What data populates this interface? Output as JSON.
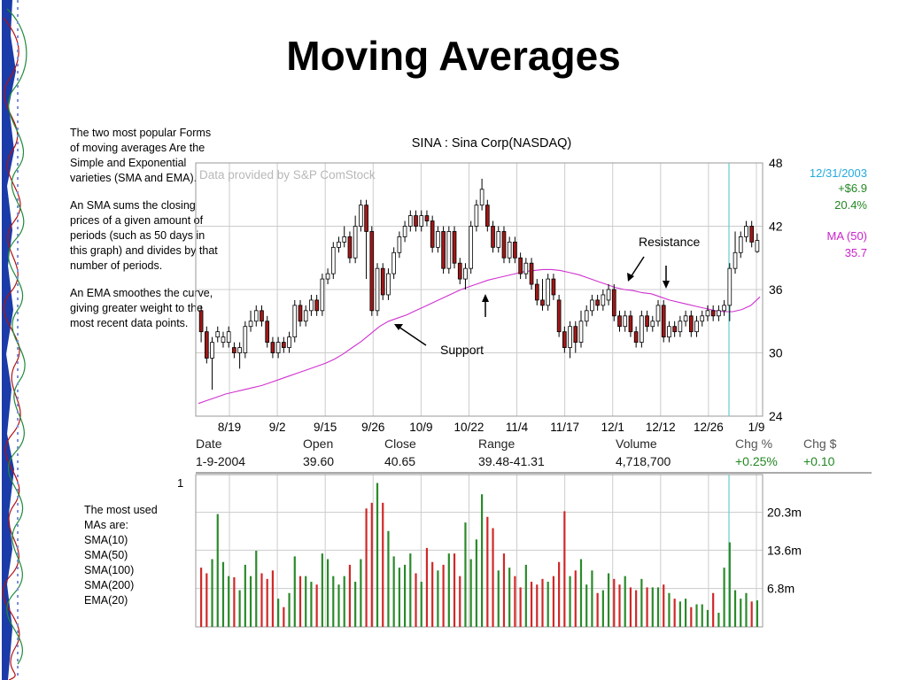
{
  "slide": {
    "title": "Moving Averages"
  },
  "notes": {
    "paragraphs": [
      "The two most popular Forms of moving averages Are the Simple and Exponential varieties (SMA and EMA).",
      "An SMA sums the closing prices of a given amount of periods (such as 50 days in this graph) and divides by that number of periods.",
      "An EMA smoothes the curve, giving greater weight to the most recent data points."
    ],
    "used_title": "The most used MAs are:",
    "used_items": [
      "SMA(10)",
      "SMA(50)",
      "SMA(100)",
      "SMA(200)",
      "EMA(20)"
    ]
  },
  "chart_data": {
    "type": "candlestick",
    "title": "SINA : Sina Corp(NASDAQ)",
    "watermark": "Data provided by S&P ComStock",
    "x_tick_labels": [
      "8/19",
      "9/2",
      "9/15",
      "9/26",
      "10/9",
      "10/22",
      "11/4",
      "11/17",
      "12/1",
      "12/12",
      "12/26",
      "1/9"
    ],
    "y_tick_labels": [
      "48",
      "42",
      "36",
      "30",
      "24"
    ],
    "ylim": [
      24,
      48
    ],
    "annotations": {
      "support": "Support",
      "resistance": "Resistance"
    },
    "last_date_info": {
      "date": "12/31/2003",
      "change_dollar": "+$6.9",
      "change_pct": "20.4%"
    },
    "ma_info": {
      "label": "MA (50)",
      "value": "35.7"
    },
    "info_row": {
      "headers": [
        "Date",
        "Open",
        "Close",
        "Range",
        "Volume",
        "Chg %",
        "Chg $"
      ],
      "values": [
        "1-9-2004",
        "39.60",
        "40.65",
        "39.48-41.31",
        "4,718,700",
        "+0.25%",
        "+0.10"
      ]
    },
    "volume_panel_label": "1",
    "volume_tick_labels": [
      "20.3m",
      "13.6m",
      "6.8m"
    ],
    "volume_max_m": 27,
    "ma50": [
      25.2,
      25.5,
      25.8,
      26.1,
      26.3,
      26.5,
      26.7,
      26.9,
      27.2,
      27.5,
      27.8,
      28.1,
      28.4,
      28.7,
      29.0,
      29.4,
      29.9,
      30.5,
      31.1,
      31.8,
      32.5,
      33.0,
      33.3,
      33.6,
      34.0,
      34.4,
      34.8,
      35.2,
      35.6,
      36.0,
      36.3,
      36.6,
      36.9,
      37.1,
      37.3,
      37.5,
      37.7,
      37.8,
      37.9,
      37.9,
      37.8,
      37.6,
      37.4,
      37.1,
      36.8,
      36.5,
      36.2,
      36.0,
      35.9,
      35.7,
      35.6,
      35.3,
      35.0,
      34.8,
      34.6,
      34.4,
      34.2,
      34.0,
      33.9,
      33.9,
      34.1,
      34.5,
      35.3
    ],
    "candles": [
      {
        "o": 34.0,
        "c": 32.0,
        "h": 34.5,
        "l": 31.0,
        "v": 10.5
      },
      {
        "o": 32.0,
        "c": 29.5,
        "h": 32.5,
        "l": 29.0,
        "v": 9.5
      },
      {
        "o": 29.5,
        "c": 31.0,
        "h": 31.5,
        "l": 26.5,
        "v": 12.0
      },
      {
        "o": 31.5,
        "c": 32.0,
        "h": 32.5,
        "l": 31.0,
        "v": 20.0
      },
      {
        "o": 31.0,
        "c": 31.5,
        "h": 32.0,
        "l": 30.5,
        "v": 11.5
      },
      {
        "o": 31.0,
        "c": 32.0,
        "h": 32.5,
        "l": 30.5,
        "v": 9.0
      },
      {
        "o": 30.5,
        "c": 30.0,
        "h": 31.0,
        "l": 29.5,
        "v": 8.8
      },
      {
        "o": 30.0,
        "c": 30.5,
        "h": 31.0,
        "l": 28.5,
        "v": 6.5
      },
      {
        "o": 30.0,
        "c": 32.5,
        "h": 33.0,
        "l": 29.5,
        "v": 11.0
      },
      {
        "o": 32.5,
        "c": 33.0,
        "h": 34.0,
        "l": 32.0,
        "v": 9.0
      },
      {
        "o": 33.0,
        "c": 34.0,
        "h": 34.5,
        "l": 32.5,
        "v": 13.5
      },
      {
        "o": 34.0,
        "c": 33.0,
        "h": 34.5,
        "l": 32.5,
        "v": 9.5
      },
      {
        "o": 33.0,
        "c": 31.0,
        "h": 33.5,
        "l": 30.5,
        "v": 8.5
      },
      {
        "o": 31.0,
        "c": 30.0,
        "h": 31.5,
        "l": 29.5,
        "v": 10.0
      },
      {
        "o": 30.0,
        "c": 31.0,
        "h": 31.5,
        "l": 29.5,
        "v": 5.0
      },
      {
        "o": 31.0,
        "c": 30.5,
        "h": 31.5,
        "l": 30.0,
        "v": 3.5
      },
      {
        "o": 30.5,
        "c": 31.5,
        "h": 32.0,
        "l": 30.0,
        "v": 6.0
      },
      {
        "o": 31.5,
        "c": 34.5,
        "h": 35.0,
        "l": 31.0,
        "v": 12.5
      },
      {
        "o": 34.5,
        "c": 33.0,
        "h": 35.0,
        "l": 32.5,
        "v": 9.0
      },
      {
        "o": 33.0,
        "c": 34.0,
        "h": 34.5,
        "l": 32.5,
        "v": 9.0
      },
      {
        "o": 34.0,
        "c": 35.0,
        "h": 35.5,
        "l": 33.5,
        "v": 8.0
      },
      {
        "o": 35.0,
        "c": 34.0,
        "h": 35.5,
        "l": 33.5,
        "v": 7.5
      },
      {
        "o": 34.0,
        "c": 37.0,
        "h": 37.5,
        "l": 33.5,
        "v": 13.0
      },
      {
        "o": 37.0,
        "c": 37.5,
        "h": 38.0,
        "l": 36.5,
        "v": 12.0
      },
      {
        "o": 37.5,
        "c": 40.0,
        "h": 40.5,
        "l": 37.0,
        "v": 9.0
      },
      {
        "o": 40.0,
        "c": 40.5,
        "h": 41.0,
        "l": 39.5,
        "v": 7.5
      },
      {
        "o": 40.5,
        "c": 41.0,
        "h": 42.0,
        "l": 40.0,
        "v": 9.0
      },
      {
        "o": 41.0,
        "c": 39.0,
        "h": 41.5,
        "l": 38.5,
        "v": 11.0
      },
      {
        "o": 39.0,
        "c": 42.0,
        "h": 43.0,
        "l": 38.5,
        "v": 8.0
      },
      {
        "o": 42.0,
        "c": 44.0,
        "h": 44.5,
        "l": 41.5,
        "v": 12.0
      },
      {
        "o": 44.0,
        "c": 41.5,
        "h": 44.5,
        "l": 37.0,
        "v": 21.0
      },
      {
        "o": 41.5,
        "c": 34.0,
        "h": 42.0,
        "l": 33.5,
        "v": 22.0
      },
      {
        "o": 34.0,
        "c": 38.0,
        "h": 38.5,
        "l": 33.5,
        "v": 25.5
      },
      {
        "o": 38.0,
        "c": 35.5,
        "h": 38.5,
        "l": 35.0,
        "v": 22.0
      },
      {
        "o": 35.5,
        "c": 37.5,
        "h": 38.0,
        "l": 35.0,
        "v": 17.0
      },
      {
        "o": 37.5,
        "c": 39.5,
        "h": 40.0,
        "l": 37.0,
        "v": 12.5
      },
      {
        "o": 39.5,
        "c": 41.0,
        "h": 41.5,
        "l": 39.0,
        "v": 10.5
      },
      {
        "o": 41.0,
        "c": 42.0,
        "h": 42.5,
        "l": 40.5,
        "v": 11.0
      },
      {
        "o": 42.0,
        "c": 43.0,
        "h": 43.5,
        "l": 41.5,
        "v": 13.0
      },
      {
        "o": 43.0,
        "c": 42.0,
        "h": 43.5,
        "l": 41.5,
        "v": 9.5
      },
      {
        "o": 42.0,
        "c": 43.0,
        "h": 43.5,
        "l": 41.5,
        "v": 8.0
      },
      {
        "o": 43.0,
        "c": 42.5,
        "h": 43.5,
        "l": 42.0,
        "v": 14.0
      },
      {
        "o": 42.5,
        "c": 40.0,
        "h": 43.0,
        "l": 39.5,
        "v": 11.5
      },
      {
        "o": 40.0,
        "c": 41.5,
        "h": 42.0,
        "l": 39.5,
        "v": 10.0
      },
      {
        "o": 41.5,
        "c": 38.0,
        "h": 42.0,
        "l": 37.5,
        "v": 11.0
      },
      {
        "o": 38.0,
        "c": 41.5,
        "h": 42.0,
        "l": 37.5,
        "v": 13.0
      },
      {
        "o": 41.5,
        "c": 38.5,
        "h": 42.0,
        "l": 38.0,
        "v": 13.0
      },
      {
        "o": 38.5,
        "c": 37.0,
        "h": 39.0,
        "l": 36.5,
        "v": 9.0
      },
      {
        "o": 37.0,
        "c": 38.0,
        "h": 38.5,
        "l": 36.0,
        "v": 18.5
      },
      {
        "o": 38.0,
        "c": 42.0,
        "h": 42.5,
        "l": 37.5,
        "v": 12.0
      },
      {
        "o": 42.0,
        "c": 44.0,
        "h": 44.5,
        "l": 41.5,
        "v": 15.5
      },
      {
        "o": 44.0,
        "c": 45.5,
        "h": 46.5,
        "l": 43.5,
        "v": 23.5
      },
      {
        "o": 44.0,
        "c": 42.0,
        "h": 44.5,
        "l": 41.5,
        "v": 19.5
      },
      {
        "o": 42.0,
        "c": 40.0,
        "h": 42.5,
        "l": 39.5,
        "v": 17.5
      },
      {
        "o": 40.0,
        "c": 41.5,
        "h": 42.0,
        "l": 39.5,
        "v": 10.0
      },
      {
        "o": 41.5,
        "c": 39.0,
        "h": 42.0,
        "l": 38.5,
        "v": 13.0
      },
      {
        "o": 39.0,
        "c": 40.5,
        "h": 41.0,
        "l": 38.5,
        "v": 10.5
      },
      {
        "o": 40.5,
        "c": 39.0,
        "h": 41.0,
        "l": 38.5,
        "v": 9.0
      },
      {
        "o": 39.0,
        "c": 37.5,
        "h": 39.5,
        "l": 37.0,
        "v": 7.0
      },
      {
        "o": 37.5,
        "c": 38.5,
        "h": 39.0,
        "l": 37.0,
        "v": 11.0
      },
      {
        "o": 38.5,
        "c": 36.5,
        "h": 39.0,
        "l": 36.0,
        "v": 8.0
      },
      {
        "o": 36.5,
        "c": 35.0,
        "h": 37.0,
        "l": 34.5,
        "v": 7.5
      },
      {
        "o": 35.0,
        "c": 34.5,
        "h": 37.0,
        "l": 34.0,
        "v": 8.5
      },
      {
        "o": 34.5,
        "c": 37.0,
        "h": 37.5,
        "l": 34.0,
        "v": 8.0
      },
      {
        "o": 37.0,
        "c": 35.5,
        "h": 37.5,
        "l": 35.0,
        "v": 9.0
      },
      {
        "o": 35.0,
        "c": 32.0,
        "h": 35.5,
        "l": 31.5,
        "v": 11.5
      },
      {
        "o": 32.0,
        "c": 30.5,
        "h": 32.5,
        "l": 30.0,
        "v": 20.5
      },
      {
        "o": 30.5,
        "c": 32.5,
        "h": 33.0,
        "l": 29.5,
        "v": 9.0
      },
      {
        "o": 32.5,
        "c": 31.0,
        "h": 33.0,
        "l": 30.0,
        "v": 10.0
      },
      {
        "o": 31.0,
        "c": 33.0,
        "h": 34.0,
        "l": 30.5,
        "v": 12.0
      },
      {
        "o": 33.0,
        "c": 34.0,
        "h": 34.5,
        "l": 32.5,
        "v": 7.5
      },
      {
        "o": 34.0,
        "c": 35.0,
        "h": 35.5,
        "l": 33.5,
        "v": 10.0
      },
      {
        "o": 35.0,
        "c": 34.5,
        "h": 35.5,
        "l": 34.0,
        "v": 6.0
      },
      {
        "o": 34.5,
        "c": 35.5,
        "h": 36.0,
        "l": 34.0,
        "v": 6.5
      },
      {
        "o": 35.0,
        "c": 36.0,
        "h": 36.5,
        "l": 34.5,
        "v": 9.5
      },
      {
        "o": 36.0,
        "c": 33.5,
        "h": 36.5,
        "l": 33.0,
        "v": 8.5
      },
      {
        "o": 33.5,
        "c": 32.5,
        "h": 34.0,
        "l": 32.0,
        "v": 7.5
      },
      {
        "o": 32.5,
        "c": 33.5,
        "h": 34.0,
        "l": 32.0,
        "v": 9.0
      },
      {
        "o": 33.5,
        "c": 32.0,
        "h": 34.0,
        "l": 31.5,
        "v": 7.0
      },
      {
        "o": 32.0,
        "c": 31.0,
        "h": 32.5,
        "l": 30.5,
        "v": 6.5
      },
      {
        "o": 31.0,
        "c": 33.5,
        "h": 34.0,
        "l": 30.5,
        "v": 8.5
      },
      {
        "o": 33.5,
        "c": 32.5,
        "h": 34.0,
        "l": 32.0,
        "v": 7.0
      },
      {
        "o": 32.5,
        "c": 33.0,
        "h": 33.5,
        "l": 32.0,
        "v": 7.0
      },
      {
        "o": 33.0,
        "c": 34.5,
        "h": 35.0,
        "l": 32.5,
        "v": 7.0
      },
      {
        "o": 34.5,
        "c": 31.5,
        "h": 35.0,
        "l": 31.0,
        "v": 7.5
      },
      {
        "o": 31.5,
        "c": 32.5,
        "h": 33.0,
        "l": 31.0,
        "v": 6.0
      },
      {
        "o": 32.5,
        "c": 32.0,
        "h": 33.0,
        "l": 31.5,
        "v": 5.0
      },
      {
        "o": 32.0,
        "c": 33.0,
        "h": 33.5,
        "l": 31.5,
        "v": 4.5
      },
      {
        "o": 33.0,
        "c": 33.5,
        "h": 34.0,
        "l": 32.5,
        "v": 5.0
      },
      {
        "o": 33.5,
        "c": 32.0,
        "h": 34.0,
        "l": 31.5,
        "v": 3.5
      },
      {
        "o": 32.0,
        "c": 33.0,
        "h": 33.5,
        "l": 31.5,
        "v": 4.0
      },
      {
        "o": 33.0,
        "c": 33.5,
        "h": 34.0,
        "l": 32.5,
        "v": 4.0
      },
      {
        "o": 33.5,
        "c": 34.0,
        "h": 34.5,
        "l": 33.0,
        "v": 3.0
      },
      {
        "o": 34.0,
        "c": 33.5,
        "h": 34.5,
        "l": 33.0,
        "v": 6.0
      },
      {
        "o": 33.5,
        "c": 34.0,
        "h": 34.5,
        "l": 33.0,
        "v": 2.5
      },
      {
        "o": 34.0,
        "c": 34.5,
        "h": 35.0,
        "l": 33.5,
        "v": 10.5
      },
      {
        "o": 34.5,
        "c": 38.0,
        "h": 38.5,
        "l": 33.0,
        "v": 15.0
      },
      {
        "o": 38.0,
        "c": 39.5,
        "h": 41.5,
        "l": 37.5,
        "v": 6.5
      },
      {
        "o": 39.5,
        "c": 41.0,
        "h": 41.5,
        "l": 39.0,
        "v": 5.0
      },
      {
        "o": 41.0,
        "c": 42.0,
        "h": 42.5,
        "l": 40.5,
        "v": 6.0
      },
      {
        "o": 42.0,
        "c": 40.5,
        "h": 42.5,
        "l": 40.0,
        "v": 4.5
      },
      {
        "o": 39.6,
        "c": 40.65,
        "h": 41.31,
        "l": 39.48,
        "v": 4.7
      }
    ]
  },
  "colors": {
    "up": "#ffffff",
    "down": "#a01818",
    "candle_outline": "#000000",
    "ma_line": "#d030d0",
    "vol_up": "#2a8a2a",
    "vol_down": "#d02828",
    "grid": "#cccccc",
    "date_info": "#22aadd",
    "change_green": "#228822",
    "ma_text": "#cc22cc",
    "cursor_line": "#66cccc"
  }
}
